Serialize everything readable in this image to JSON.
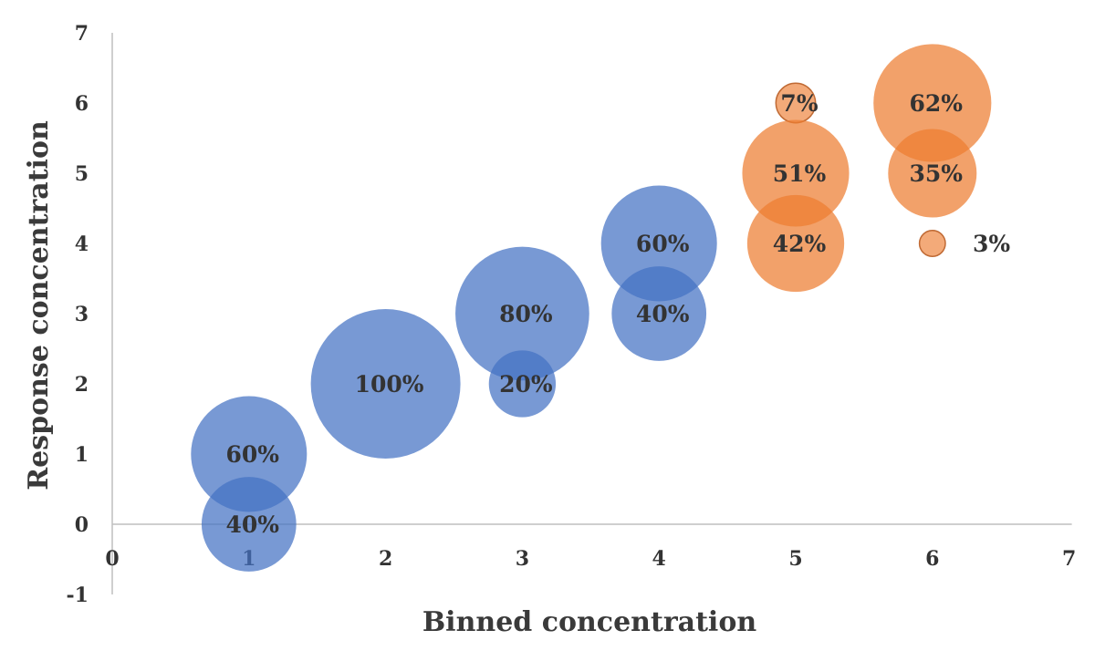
{
  "chart_data": {
    "type": "bubble",
    "title": "",
    "xlabel": "Binned concentration",
    "ylabel": "Response concentration",
    "xlim": [
      0,
      7
    ],
    "ylim": [
      -1,
      7
    ],
    "x_ticks": [
      "0",
      "1",
      "2",
      "3",
      "4",
      "5",
      "6",
      "7"
    ],
    "y_ticks": [
      "-1",
      "0",
      "1",
      "2",
      "3",
      "4",
      "5",
      "6",
      "7"
    ],
    "grid": false,
    "series": [
      {
        "name": "blue",
        "color": "#4472C4",
        "points": [
          {
            "x": 1,
            "y": 1,
            "size": 60,
            "label": "60%"
          },
          {
            "x": 1,
            "y": 0,
            "size": 40,
            "label": "40%"
          },
          {
            "x": 2,
            "y": 2,
            "size": 100,
            "label": "100%"
          },
          {
            "x": 3,
            "y": 3,
            "size": 80,
            "label": "80%"
          },
          {
            "x": 3,
            "y": 2,
            "size": 20,
            "label": "20%"
          },
          {
            "x": 4,
            "y": 4,
            "size": 60,
            "label": "60%"
          },
          {
            "x": 4,
            "y": 3,
            "size": 40,
            "label": "40%"
          }
        ]
      },
      {
        "name": "orange",
        "color": "#ED7D31",
        "points": [
          {
            "x": 5,
            "y": 6,
            "size": 7,
            "label": "7%"
          },
          {
            "x": 5,
            "y": 5,
            "size": 51,
            "label": "51%"
          },
          {
            "x": 5,
            "y": 4,
            "size": 42,
            "label": "42%"
          },
          {
            "x": 6,
            "y": 6,
            "size": 62,
            "label": "62%"
          },
          {
            "x": 6,
            "y": 5,
            "size": 35,
            "label": "35%"
          },
          {
            "x": 6,
            "y": 4,
            "size": 3,
            "label": "3%",
            "label_position": "right"
          }
        ]
      }
    ]
  }
}
